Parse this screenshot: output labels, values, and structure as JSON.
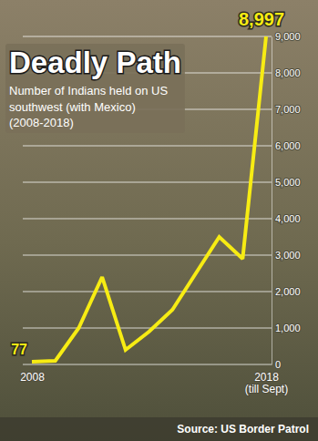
{
  "chart_data": {
    "type": "line",
    "title": "Deadly Path",
    "subtitle": "Number of Indians held on US southwest (with Mexico) (2008-2018)",
    "categories": [
      "2008",
      null,
      null,
      null,
      null,
      null,
      null,
      null,
      null,
      null,
      "2018 (till Sept)"
    ],
    "values": [
      77,
      100,
      1000,
      2400,
      400,
      900,
      1500,
      2500,
      3500,
      2900,
      8997
    ],
    "value_labels": [
      "77",
      null,
      null,
      null,
      null,
      null,
      null,
      null,
      null,
      null,
      "8,997"
    ],
    "data_labels": true,
    "color": "#f7ec13",
    "ylim": [
      0,
      9000
    ],
    "yticks": [
      0,
      {
        "value": 1000,
        "label": "1,000"
      },
      {
        "value": 2000,
        "label": "2,000"
      },
      {
        "value": 3000,
        "label": "3,000"
      },
      {
        "value": 4000,
        "label": "4,000"
      },
      {
        "value": 5000,
        "label": "5,000"
      },
      {
        "value": 6000,
        "label": "6,000"
      },
      {
        "value": 7000,
        "label": "7,000"
      },
      {
        "value": 8000,
        "label": "8,000"
      },
      {
        "value": 9000,
        "label": "9,000"
      }
    ],
    "grid": true,
    "source": "Source: US Border Patrol"
  }
}
